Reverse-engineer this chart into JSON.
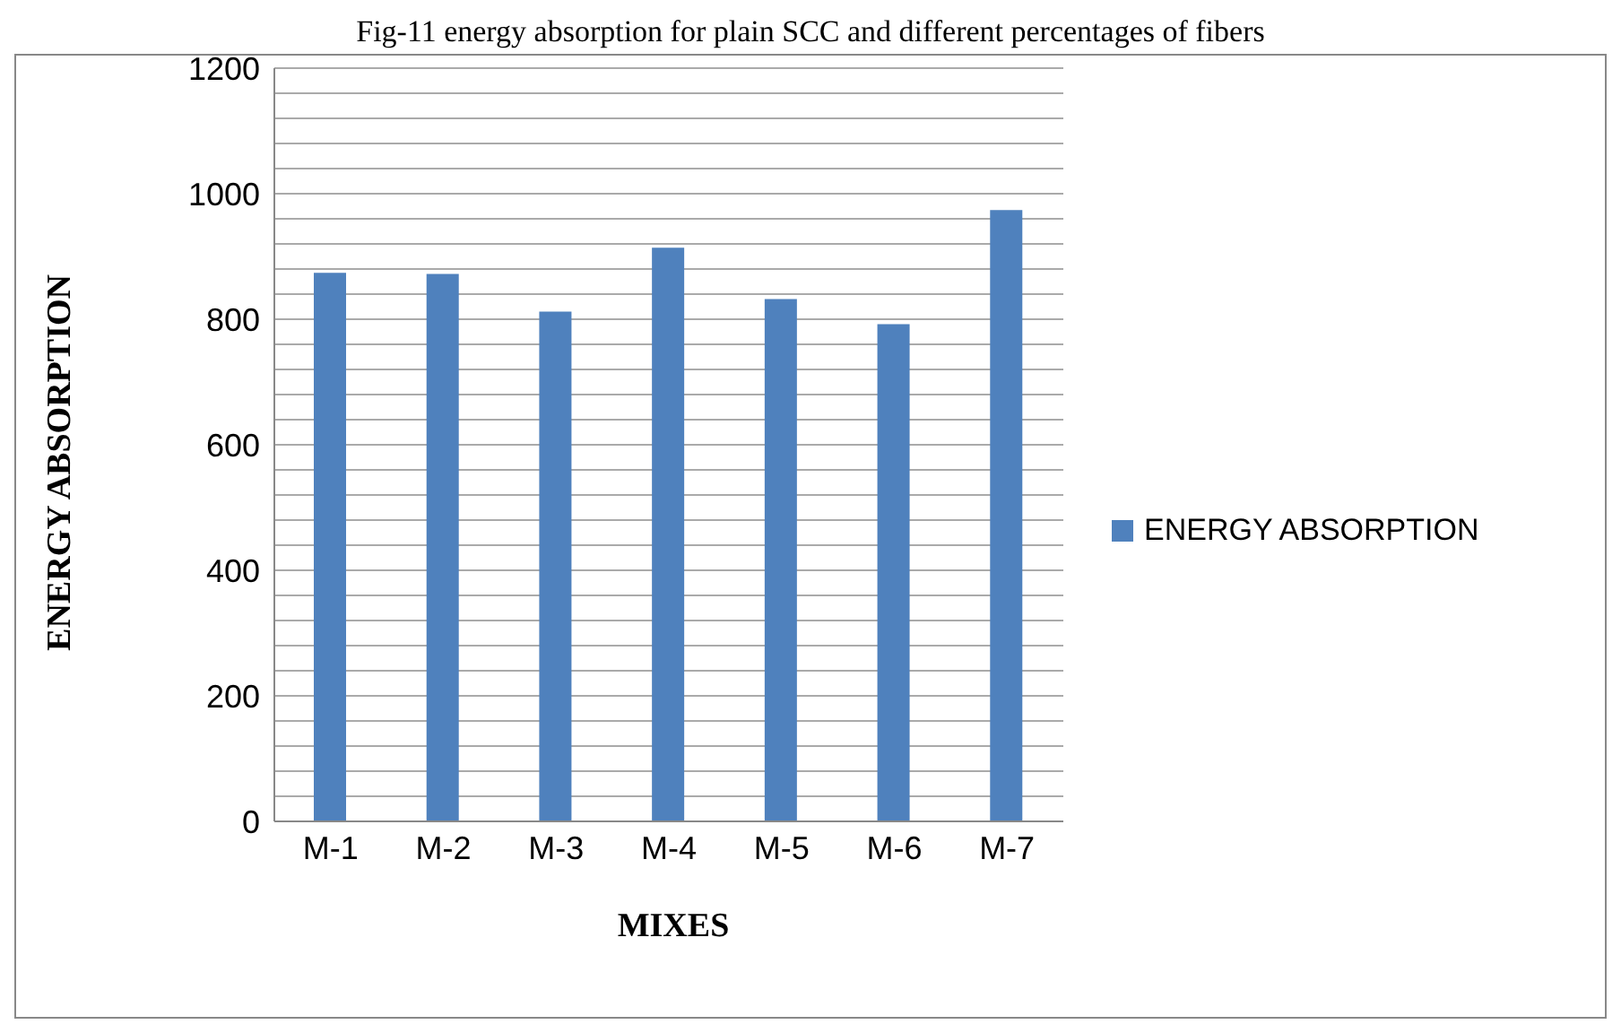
{
  "chart_data": {
    "type": "bar",
    "title": "Fig-11 energy absorption for plain SCC and different percentages of fibers",
    "xlabel": "MIXES",
    "ylabel": "ENERGY ABSORPTION",
    "categories": [
      "M-1",
      "M-2",
      "M-3",
      "M-4",
      "M-5",
      "M-6",
      "M-7"
    ],
    "series": [
      {
        "name": "ENERGY ABSORPTION",
        "color": "#4f81bd",
        "values": [
          874,
          872,
          812,
          914,
          832,
          792,
          974
        ]
      }
    ],
    "ylim": [
      0,
      1200
    ],
    "yticks": [
      0,
      {
        "value": 40,
        "label": null
      },
      {
        "value": 80,
        "label": null
      },
      {
        "value": 120,
        "label": null
      },
      {
        "value": 160,
        "label": null
      },
      200,
      {
        "value": 240,
        "label": null
      },
      {
        "value": 280,
        "label": null
      },
      {
        "value": 320,
        "label": null
      },
      {
        "value": 360,
        "label": null
      },
      400,
      {
        "value": 440,
        "label": null
      },
      {
        "value": 480,
        "label": null
      },
      {
        "value": 520,
        "label": null
      },
      {
        "value": 560,
        "label": null
      },
      600,
      {
        "value": 640,
        "label": null
      },
      {
        "value": 680,
        "label": null
      },
      {
        "value": 720,
        "label": null
      },
      {
        "value": 760,
        "label": null
      },
      800,
      {
        "value": 840,
        "label": null
      },
      {
        "value": 880,
        "label": null
      },
      {
        "value": 920,
        "label": null
      },
      {
        "value": 960,
        "label": null
      },
      1000,
      {
        "value": 1040,
        "label": null
      },
      {
        "value": 1080,
        "label": null
      },
      {
        "value": 1120,
        "label": null
      },
      {
        "value": 1160,
        "label": null
      },
      1200
    ],
    "grid": true,
    "legend": "right"
  }
}
